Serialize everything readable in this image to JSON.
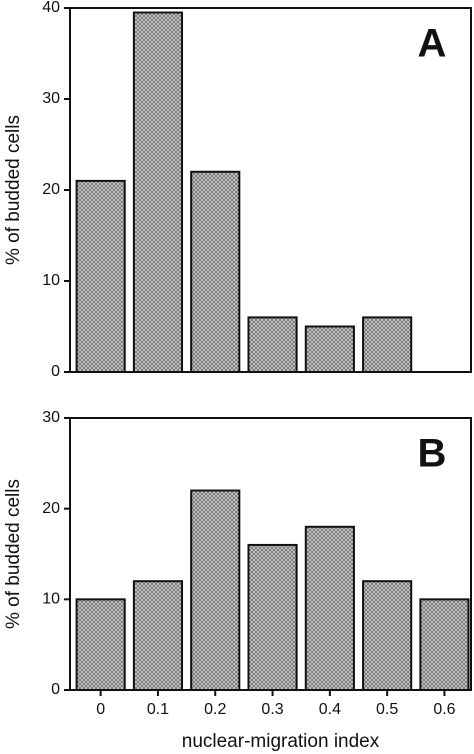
{
  "chart_data": [
    {
      "type": "bar",
      "annotation": "A",
      "ylabel": "% of budded cells",
      "categories": [
        null,
        null,
        null,
        null,
        null,
        null
      ],
      "values": [
        21,
        39.5,
        22,
        6,
        5,
        6
      ],
      "color": "#777777",
      "ylim": [
        0,
        40
      ],
      "yticks": [
        0,
        10,
        20,
        30,
        40
      ]
    },
    {
      "type": "bar",
      "annotation": "B",
      "ylabel": "% of budded cells",
      "xlabel": "nuclear-migration  index",
      "categories": [
        "0",
        "0.1",
        "0.2",
        "0.3",
        "0.4",
        "0.5",
        "0.6"
      ],
      "values": [
        10,
        12,
        22,
        16,
        18,
        12,
        10
      ],
      "color": "#777777",
      "ylim": [
        0,
        30
      ],
      "yticks": [
        0,
        10,
        20,
        30
      ]
    }
  ]
}
